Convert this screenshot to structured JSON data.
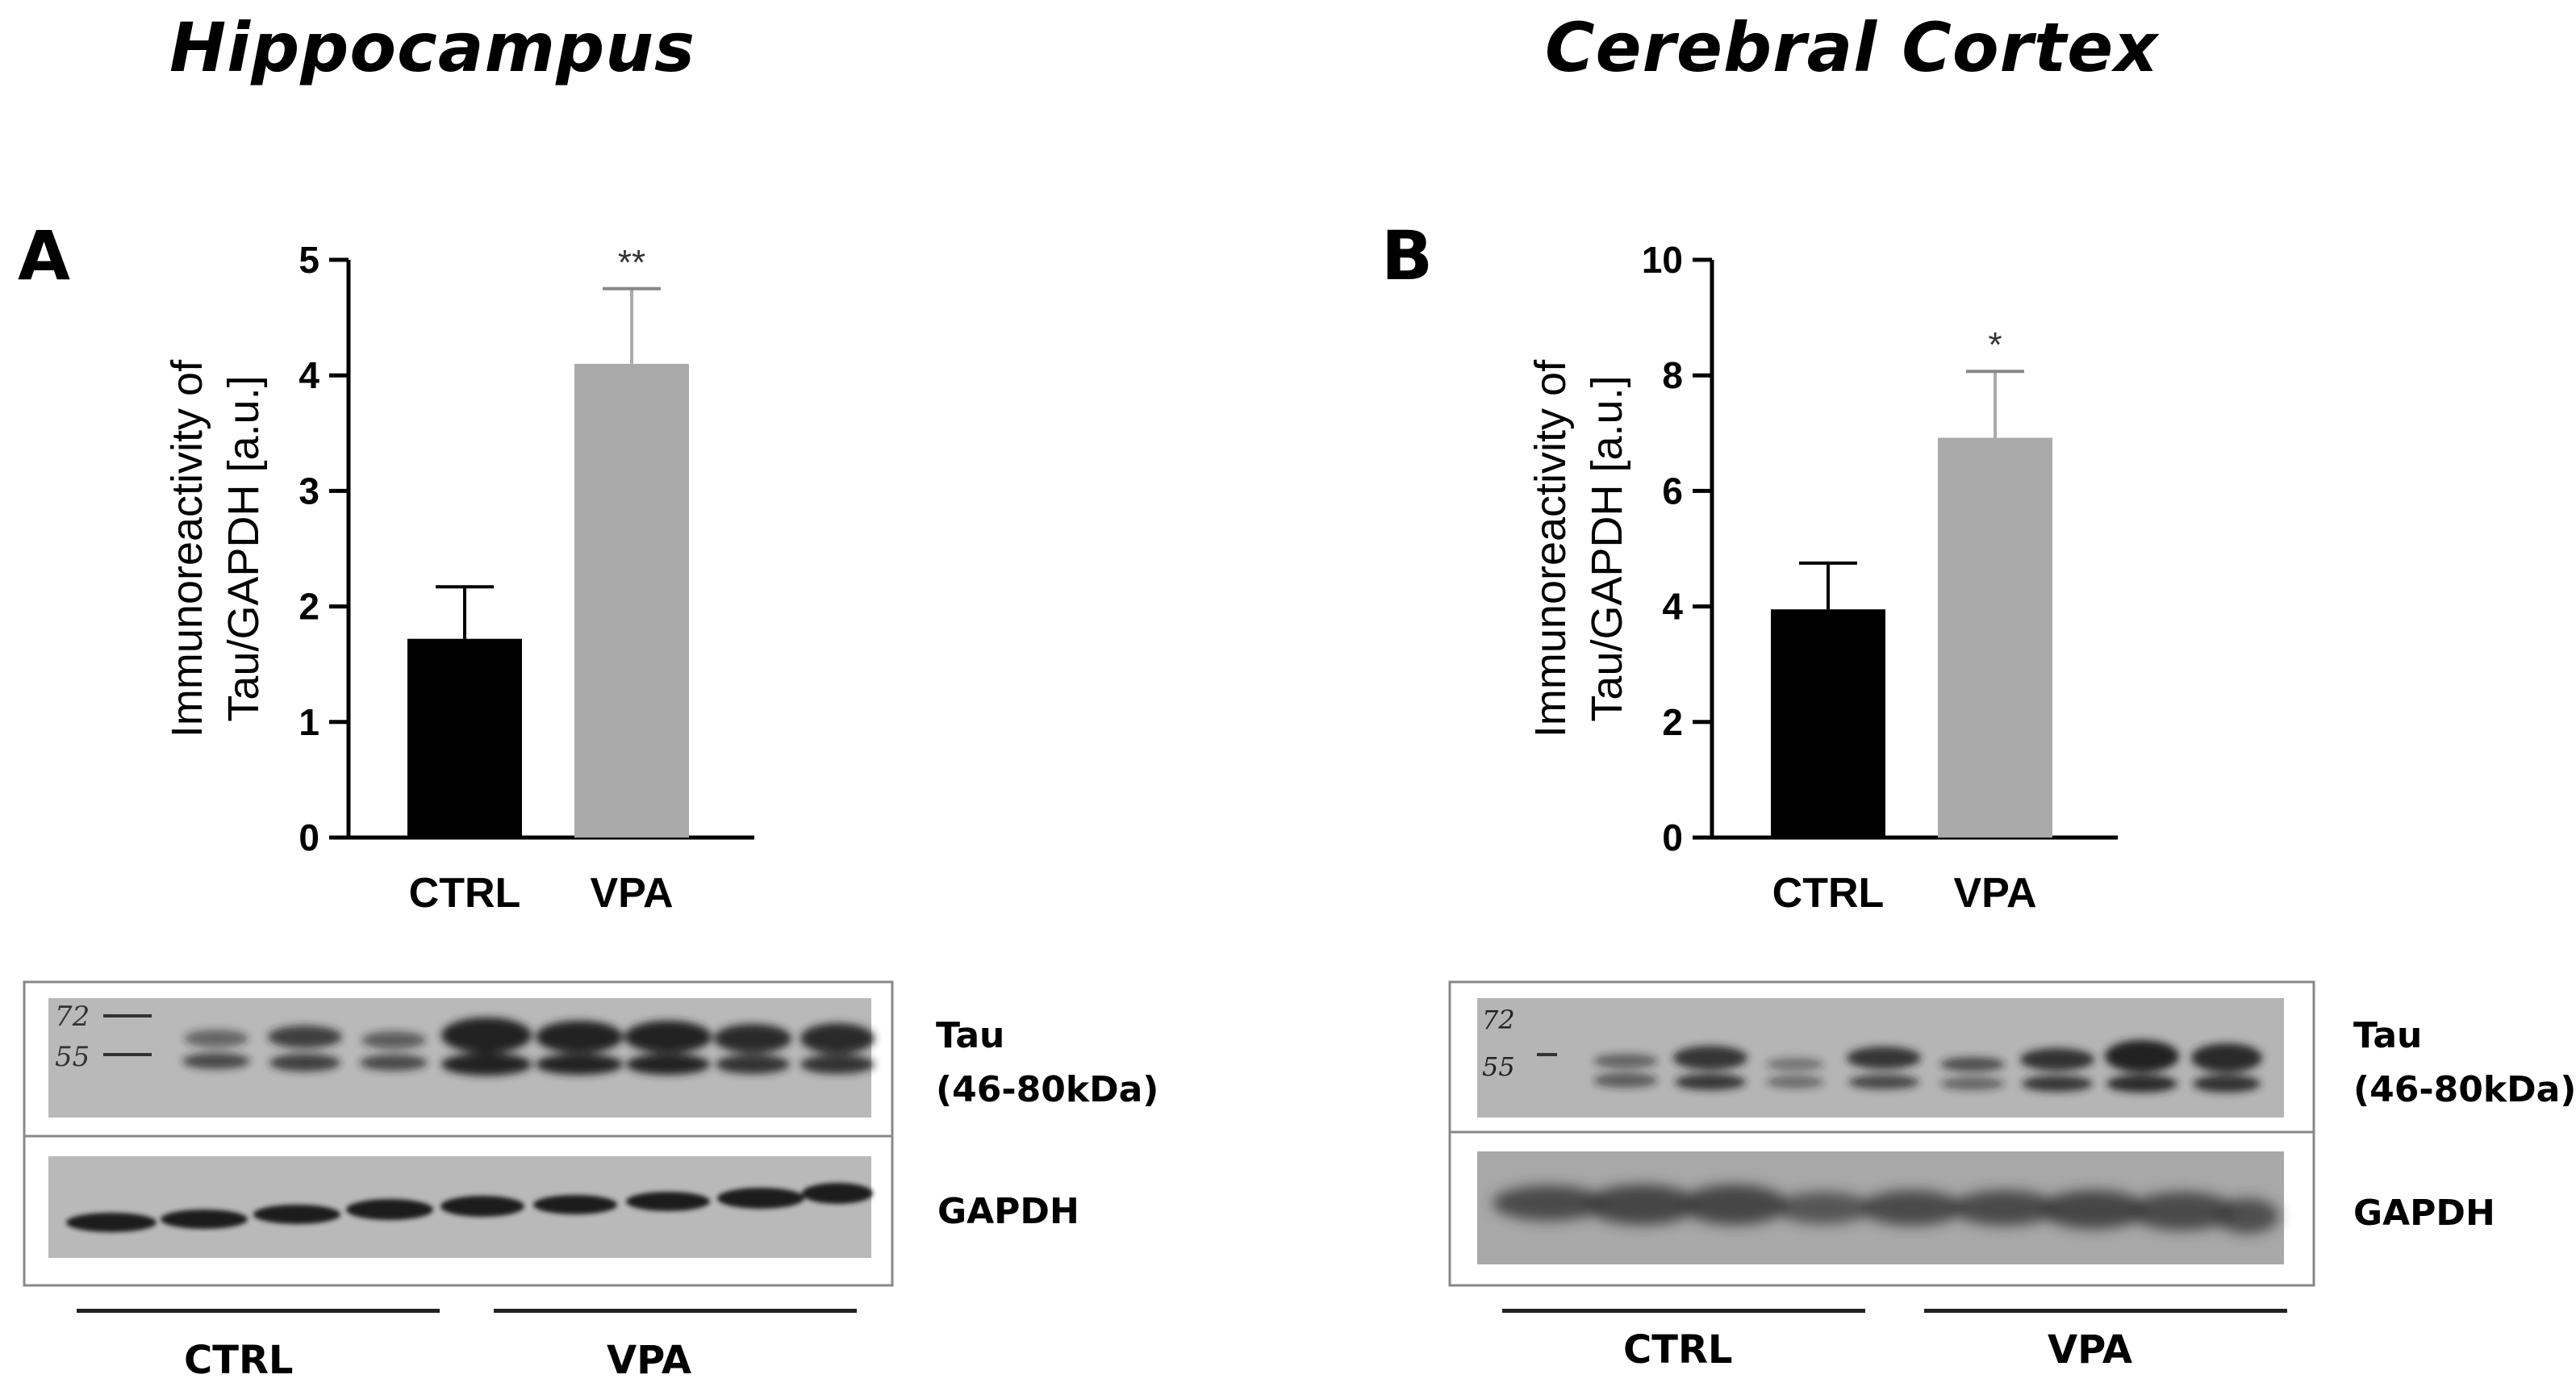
{
  "titles": {
    "left": "Hippocampus",
    "right": "Cerebral Cortex"
  },
  "panels": {
    "left": "A",
    "right": "B"
  },
  "chart_data": [
    {
      "type": "bar",
      "title": "",
      "xlabel": "",
      "ylabel_line1": "Immunoreactivity of",
      "ylabel_line2": "Tau/GAPDH [a.u.]",
      "ylim": [
        0,
        5
      ],
      "yticks": [
        "0",
        "1",
        "2",
        "3",
        "4",
        "5"
      ],
      "categories": [
        "CTRL",
        "VPA"
      ],
      "values": [
        1.72,
        4.1
      ],
      "errors": [
        0.45,
        0.65
      ],
      "significance": [
        "",
        "**"
      ],
      "colors": [
        "#000000",
        "#aaaaaa"
      ]
    },
    {
      "type": "bar",
      "title": "",
      "xlabel": "",
      "ylabel_line1": "Immunoreactivity of",
      "ylabel_line2": "Tau/GAPDH [a.u.]",
      "ylim": [
        0,
        10
      ],
      "yticks": [
        "0",
        "2",
        "4",
        "6",
        "8",
        "10"
      ],
      "categories": [
        "CTRL",
        "VPA"
      ],
      "values": [
        3.95,
        6.92
      ],
      "errors": [
        0.8,
        1.15
      ],
      "significance": [
        "",
        "*"
      ],
      "colors": [
        "#000000",
        "#aaaaaa"
      ]
    }
  ],
  "blots": {
    "left": {
      "tau_label": "Tau",
      "tau_kda": "(46-80kDa)",
      "gapdh_label": "GAPDH",
      "markers": [
        "72",
        "55"
      ],
      "group_labels": [
        "CTRL",
        "VPA"
      ]
    },
    "right": {
      "tau_label": "Tau",
      "tau_kda": "(46-80kDa)",
      "gapdh_label": "GAPDH",
      "markers": [
        "72",
        "55"
      ],
      "group_labels": [
        "CTRL",
        "VPA"
      ]
    }
  }
}
